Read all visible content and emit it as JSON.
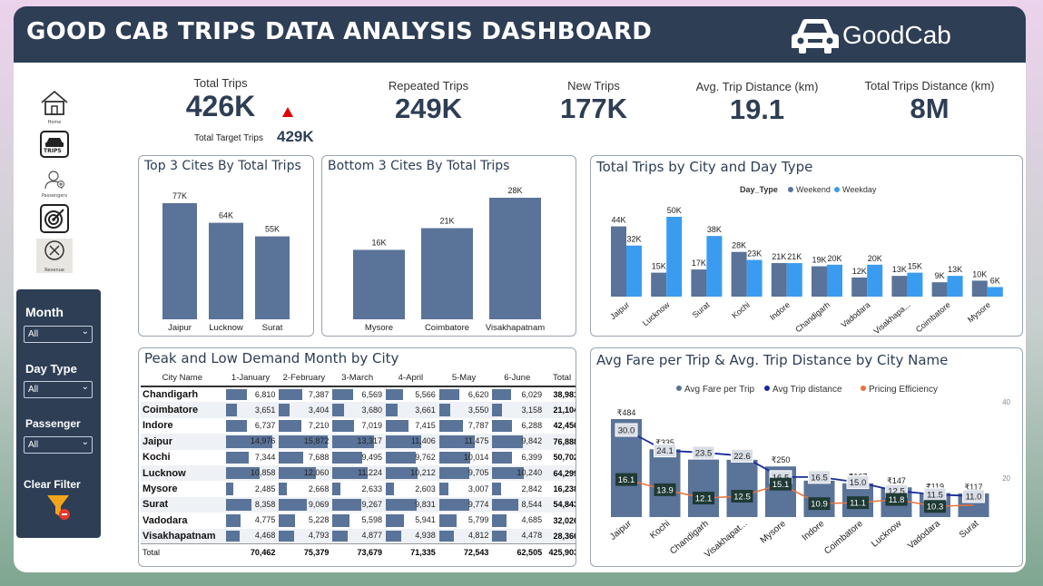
{
  "header": {
    "title": "GOOD CAB TRIPS DATA ANALYSIS DASHBOARD",
    "logo_text": "GoodCab"
  },
  "nav": {
    "home_label": "Home",
    "trips_label": "TRIPS",
    "passengers_label": "Passengers",
    "revenue_label": "Revenue"
  },
  "slicers": {
    "month_label": "Month",
    "month_value": "All",
    "daytype_label": "Day Type",
    "daytype_value": "All",
    "passenger_label": "Passenger",
    "passenger_value": "All",
    "clear_label": "Clear Filter"
  },
  "kpis": {
    "total_trips_label": "Total Trips",
    "total_trips_value": "426K",
    "target_label": "Total Target Trips",
    "target_value": "429K",
    "repeated_label": "Repeated Trips",
    "repeated_value": "249K",
    "new_label": "New Trips",
    "new_value": "177K",
    "avg_dist_label": "Avg. Trip Distance (km)",
    "avg_dist_value": "19.1",
    "total_dist_label": "Total Trips Distance (km)",
    "total_dist_value": "8M"
  },
  "colors": {
    "header": "#2d3e55",
    "bar": "#5a7399",
    "weekend": "#5a7399",
    "weekday": "#3a9cf0",
    "dist_line": "#1a2b9a",
    "eff_line": "#e8733a",
    "kpi_up": "#e00000"
  },
  "chart_data": [
    {
      "type": "bar",
      "title": "Top 3 Cites By Total Trips",
      "categories": [
        "Jaipur",
        "Lucknow",
        "Surat"
      ],
      "values": [
        77,
        64,
        55
      ],
      "labels": [
        "77K",
        "64K",
        "55K"
      ]
    },
    {
      "type": "bar",
      "title": "Bottom 3 Cites By Total Trips",
      "categories": [
        "Mysore",
        "Coimbatore",
        "Visakhapatnam"
      ],
      "values": [
        16,
        21,
        28
      ],
      "labels": [
        "16K",
        "21K",
        "28K"
      ]
    },
    {
      "type": "bar",
      "title": "Total Trips by City and Day Type",
      "legend_title": "Day_Type",
      "legend": "top",
      "categories": [
        "Jaipur",
        "Lucknow",
        "Surat",
        "Kochi",
        "Indore",
        "Chandigarh",
        "Vadodara",
        "Visakhapa...",
        "Coimbatore",
        "Mysore"
      ],
      "series": [
        {
          "name": "Weekend",
          "values": [
            44,
            15,
            17,
            28,
            21,
            19,
            12,
            13,
            9,
            10
          ],
          "labels": [
            "44K",
            "15K",
            "17K",
            "28K",
            "21K",
            "19K",
            "12K",
            "13K",
            "9K",
            "10K"
          ]
        },
        {
          "name": "Weekday",
          "values": [
            32,
            50,
            38,
            23,
            21,
            20,
            20,
            15,
            13,
            6
          ],
          "labels": [
            "32K",
            "50K",
            "38K",
            "23K",
            "21K",
            "20K",
            "20K",
            "15K",
            "13K",
            "6K"
          ]
        }
      ]
    },
    {
      "type": "table",
      "title": "Peak and Low Demand Month by City",
      "columns": [
        "City Name",
        "1-January",
        "2-February",
        "3-March",
        "4-April",
        "5-May",
        "6-June",
        "Total"
      ],
      "rows": [
        {
          "city": "Chandigarh",
          "values": [
            6810,
            7387,
            6569,
            5566,
            6620,
            6029
          ],
          "labels": [
            "6,810",
            "7,387",
            "6,569",
            "5,566",
            "6,620",
            "6,029"
          ],
          "total": "38,981"
        },
        {
          "city": "Coimbatore",
          "values": [
            3651,
            3404,
            3680,
            3661,
            3550,
            3158
          ],
          "labels": [
            "3,651",
            "3,404",
            "3,680",
            "3,661",
            "3,550",
            "3,158"
          ],
          "total": "21,104"
        },
        {
          "city": "Indore",
          "values": [
            6737,
            7210,
            7019,
            7415,
            7787,
            6288
          ],
          "labels": [
            "6,737",
            "7,210",
            "7,019",
            "7,415",
            "7,787",
            "6,288"
          ],
          "total": "42,456"
        },
        {
          "city": "Jaipur",
          "values": [
            14976,
            15872,
            13317,
            11406,
            11475,
            9842
          ],
          "labels": [
            "14,976",
            "15,872",
            "13,317",
            "11,406",
            "11,475",
            "9,842"
          ],
          "total": "76,888"
        },
        {
          "city": "Kochi",
          "values": [
            7344,
            7688,
            9495,
            9762,
            10014,
            6399
          ],
          "labels": [
            "7,344",
            "7,688",
            "9,495",
            "9,762",
            "10,014",
            "6,399"
          ],
          "total": "50,702"
        },
        {
          "city": "Lucknow",
          "values": [
            10858,
            12060,
            11224,
            10212,
            9705,
            10240
          ],
          "labels": [
            "10,858",
            "12,060",
            "11,224",
            "10,212",
            "9,705",
            "10,240"
          ],
          "total": "64,299"
        },
        {
          "city": "Mysore",
          "values": [
            2485,
            2668,
            2633,
            2603,
            3007,
            2842
          ],
          "labels": [
            "2,485",
            "2,668",
            "2,633",
            "2,603",
            "3,007",
            "2,842"
          ],
          "total": "16,238"
        },
        {
          "city": "Surat",
          "values": [
            8358,
            9069,
            9267,
            9831,
            9774,
            8544
          ],
          "labels": [
            "8,358",
            "9,069",
            "9,267",
            "9,831",
            "9,774",
            "8,544"
          ],
          "total": "54,843"
        },
        {
          "city": "Vadodara",
          "values": [
            4775,
            5228,
            5598,
            5941,
            5799,
            4685
          ],
          "labels": [
            "4,775",
            "5,228",
            "5,598",
            "5,941",
            "5,799",
            "4,685"
          ],
          "total": "32,026"
        },
        {
          "city": "Visakhapatnam",
          "values": [
            4468,
            4793,
            4877,
            4938,
            4812,
            4478
          ],
          "labels": [
            "4,468",
            "4,793",
            "4,877",
            "4,938",
            "4,812",
            "4,478"
          ],
          "total": "28,366"
        }
      ],
      "totals": {
        "label": "Total",
        "values": [
          "70,462",
          "75,379",
          "73,679",
          "71,335",
          "72,543",
          "62,505"
        ],
        "grand": "425,903"
      }
    },
    {
      "type": "bar",
      "title": "Avg Fare per Trip & Avg. Trip Distance by City Name",
      "legend": "top",
      "categories": [
        "Jaipur",
        "Kochi",
        "Chandigarh",
        "Visakhapat...",
        "Mysore",
        "Indore",
        "Coimbatore",
        "Lucknow",
        "Vadodara",
        "Surat"
      ],
      "y2_ticks": [
        "40",
        "20"
      ],
      "series": [
        {
          "name": "Avg Fare per Trip",
          "values": [
            484,
            335,
            284,
            283,
            250,
            180,
            167,
            147,
            119,
            117
          ],
          "labels": [
            "₹484",
            "₹335",
            "₹284",
            "₹283",
            "₹250",
            "₹180",
            "₹167",
            "₹147",
            "₹119",
            "₹117"
          ]
        },
        {
          "name": "Avg Trip distance",
          "values": [
            30.0,
            24.1,
            23.5,
            22.6,
            16.5,
            16.5,
            15.0,
            12.5,
            11.5,
            11.0
          ],
          "labels": [
            "30.0",
            "24.1",
            "23.5",
            "22.6",
            "16.5",
            "16.5",
            "15.0",
            "12.5",
            "11.5",
            "11.0"
          ]
        },
        {
          "name": "Pricing Efficiency",
          "values": [
            16.1,
            13.9,
            12.1,
            12.5,
            15.1,
            10.9,
            11.1,
            11.8,
            10.3,
            10.6
          ],
          "labels": [
            "16.1",
            "13.9",
            "12.1",
            "12.5",
            "15.1",
            "10.9",
            "11.1",
            "11.8",
            "10.3",
            ""
          ]
        }
      ]
    }
  ]
}
